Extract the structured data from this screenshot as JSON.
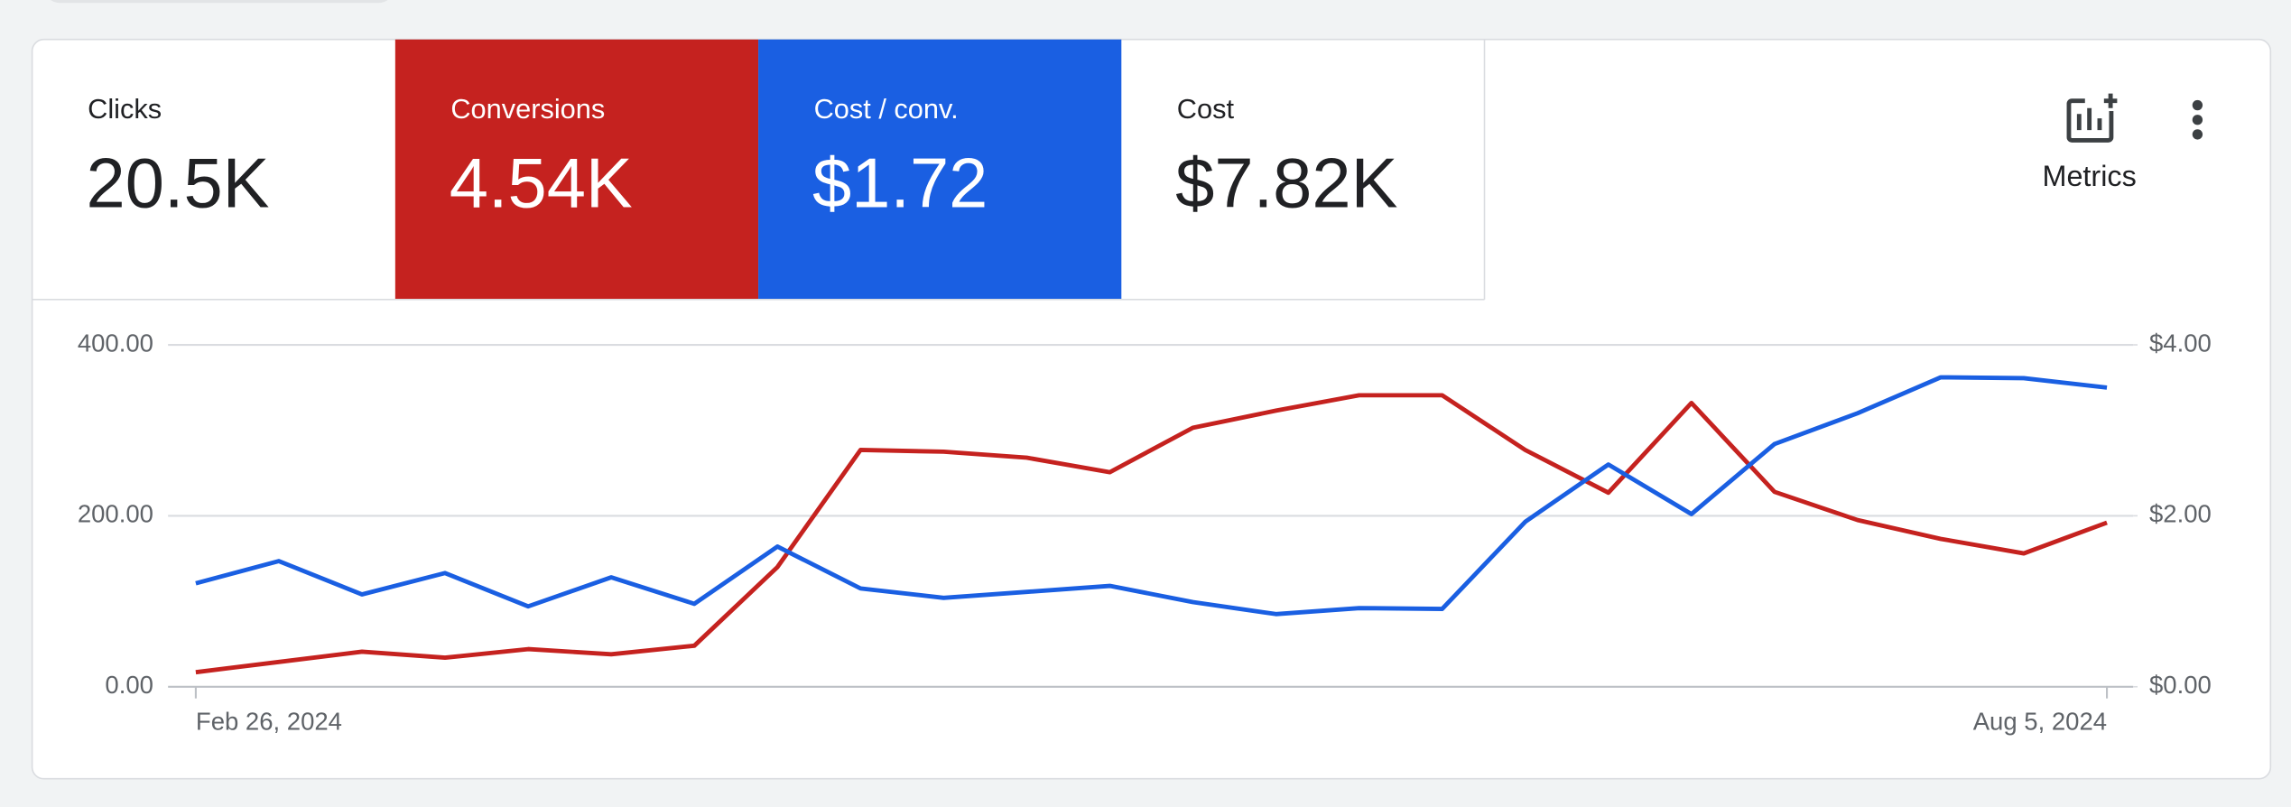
{
  "metrics": [
    {
      "label": "Clicks",
      "value": "20.5K"
    },
    {
      "label": "Conversions",
      "value": "4.54K",
      "color": "#c5221f"
    },
    {
      "label": "Cost / conv.",
      "value": "$1.72",
      "color": "#1a5fe2"
    },
    {
      "label": "Cost",
      "value": "$7.82K"
    }
  ],
  "metrics_button": "Metrics",
  "chart_data": {
    "type": "line",
    "categories": [
      "Feb 26, 2024",
      null,
      null,
      null,
      null,
      null,
      null,
      null,
      null,
      null,
      null,
      null,
      null,
      null,
      null,
      null,
      null,
      null,
      null,
      null,
      null,
      null,
      null,
      "Aug 5, 2024"
    ],
    "series": [
      {
        "name": "Conversions",
        "color": "#c5221f",
        "values": [
          17,
          29,
          41,
          34,
          44,
          38,
          48,
          140,
          277,
          275,
          268,
          251,
          303,
          323,
          341,
          341,
          277,
          227,
          332,
          228,
          195,
          173,
          156,
          192
        ]
      },
      {
        "name": "Cost / conv.",
        "color": "#1a5fe2",
        "axis": "y2",
        "values": [
          1.21,
          1.47,
          1.08,
          1.33,
          0.94,
          1.28,
          0.97,
          1.64,
          1.15,
          1.04,
          1.11,
          1.18,
          0.99,
          0.85,
          0.92,
          0.91,
          1.93,
          2.6,
          2.02,
          2.84,
          3.2,
          3.62,
          3.61,
          3.5
        ]
      }
    ],
    "ylim": [
      0,
      400
    ],
    "yticks": [
      {
        "value": 0,
        "label": "0.00"
      },
      {
        "value": 200,
        "label": "200.00"
      },
      {
        "value": 400,
        "label": "400.00"
      }
    ],
    "y2lim": [
      0,
      4
    ],
    "y2ticks": [
      {
        "value": 0,
        "label": "$0.00"
      },
      {
        "value": 2,
        "label": "$2.00"
      },
      {
        "value": 4,
        "label": "$4.00"
      }
    ],
    "grid": true
  }
}
